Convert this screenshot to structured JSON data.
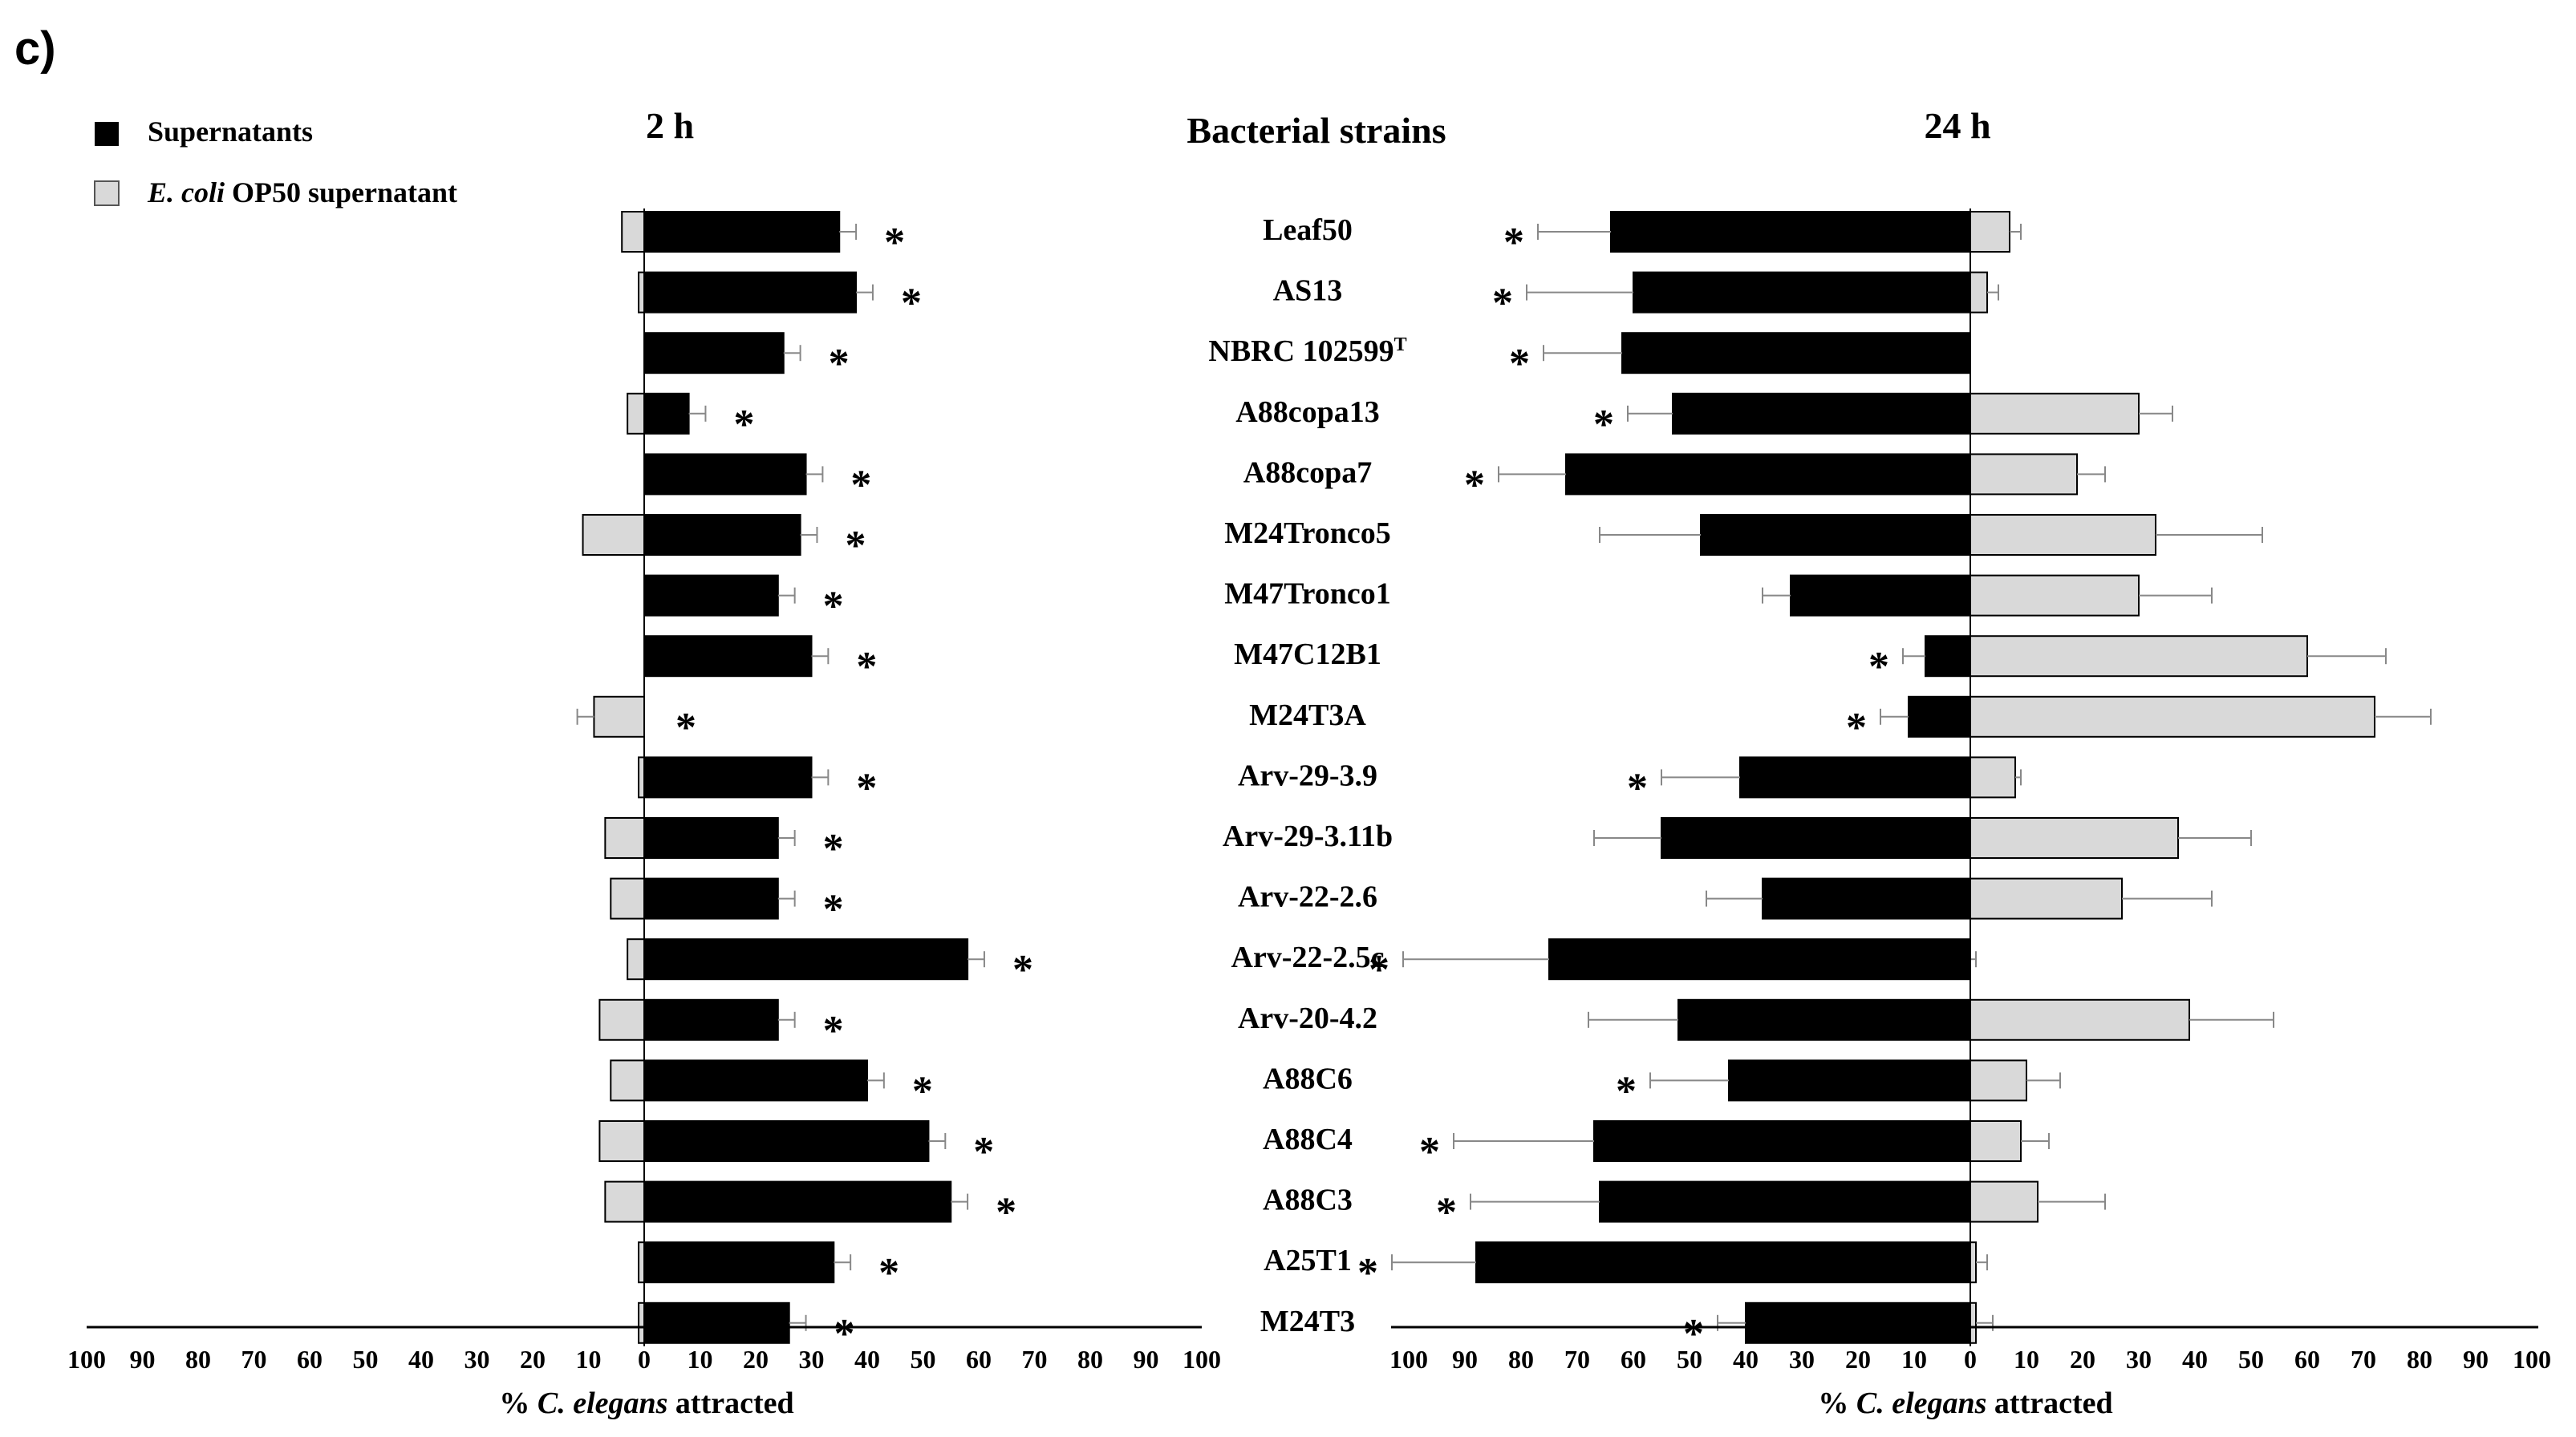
{
  "chart_data": {
    "type": "bar",
    "panel_label": "c)",
    "center_title": "Bacterial strains",
    "legend": {
      "supernatants": "Supernatants",
      "ecoli_italic": "E. coli",
      "ecoli_rest": " OP50 supernatant"
    },
    "categories": [
      "Leaf50",
      "AS13",
      "NBRC 102599",
      "A88copa13",
      "A88copa7",
      "M24Tronco5",
      "M47Tronco1",
      "M47C12B1",
      "M24T3A",
      "Arv-29-3.9",
      "Arv-29-3.11b",
      "Arv-22-2.6",
      "Arv-22-2.5c",
      "Arv-20-4.2",
      "A88C6",
      "A88C4",
      "A88C3",
      "A25T1",
      "M24T3"
    ],
    "category_superscripts": [
      "",
      "",
      "T",
      "",
      "",
      "",
      "",
      "",
      "",
      "",
      "",
      "",
      "",
      "",
      "",
      "",
      "",
      "",
      ""
    ],
    "panels": [
      {
        "title": "2 h",
        "xlabel_pre": "% ",
        "xlabel_italic": "C. elegans",
        "xlabel_post": " attracted",
        "xlim": [
          -100,
          100
        ],
        "tick_labels": [
          "100",
          "90",
          "80",
          "70",
          "60",
          "50",
          "40",
          "30",
          "20",
          "10",
          "0",
          "10",
          "20",
          "30",
          "40",
          "50",
          "60",
          "70",
          "80",
          "90",
          "100"
        ],
        "series": [
          {
            "name": "Supernatants",
            "values": [
              35,
              38,
              25,
              8,
              29,
              28,
              24,
              30,
              0,
              30,
              24,
              24,
              58,
              24,
              40,
              51,
              55,
              34,
              26
            ],
            "errors": [
              3,
              3,
              3,
              3,
              3,
              3,
              3,
              3,
              0,
              3,
              3,
              3,
              3,
              3,
              3,
              3,
              3,
              3,
              3
            ]
          },
          {
            "name": "E. coli OP50 supernatant",
            "values": [
              4,
              1,
              0,
              3,
              0,
              11,
              0,
              0,
              9,
              1,
              7,
              6,
              3,
              8,
              6,
              8,
              7,
              1,
              1
            ],
            "errors": [
              0,
              0,
              0,
              0,
              0,
              0,
              0,
              0,
              3,
              0,
              0,
              0,
              0,
              0,
              0,
              0,
              0,
              0,
              0
            ]
          }
        ],
        "significance": [
          "*",
          "*",
          "*",
          "*",
          "*",
          "*",
          "*",
          "*",
          "*",
          "*",
          "*",
          "*",
          "*",
          "*",
          "*",
          "*",
          "*",
          "*",
          "*"
        ]
      },
      {
        "title": "24 h",
        "xlabel_pre": "% ",
        "xlabel_italic": "C. elegans",
        "xlabel_post": " attracted",
        "xlim": [
          -100,
          100
        ],
        "tick_labels": [
          "100",
          "90",
          "80",
          "70",
          "60",
          "50",
          "40",
          "30",
          "20",
          "10",
          "0",
          "10",
          "20",
          "30",
          "40",
          "50",
          "60",
          "70",
          "80",
          "90",
          "100"
        ],
        "series": [
          {
            "name": "Supernatants",
            "values": [
              64,
              60,
              62,
              53,
              72,
              48,
              32,
              8,
              11,
              41,
              55,
              37,
              75,
              52,
              43,
              67,
              66,
              88,
              40
            ],
            "errors": [
              13,
              19,
              14,
              8,
              12,
              18,
              5,
              4,
              5,
              14,
              12,
              10,
              26,
              16,
              14,
              25,
              23,
              15,
              5
            ]
          },
          {
            "name": "E. coli OP50 supernatant",
            "values": [
              7,
              3,
              0,
              30,
              19,
              33,
              30,
              60,
              72,
              8,
              37,
              27,
              0,
              39,
              10,
              9,
              12,
              1,
              1
            ],
            "errors": [
              2,
              2,
              0,
              6,
              5,
              19,
              13,
              14,
              10,
              1,
              13,
              16,
              1,
              15,
              6,
              5,
              12,
              2,
              3
            ]
          }
        ],
        "significance": [
          "*",
          "*",
          "*",
          "*",
          "*",
          "",
          "",
          "*",
          "*",
          "*",
          "",
          "",
          "*",
          "",
          "*",
          "*",
          "*",
          "*",
          "*"
        ]
      }
    ]
  }
}
